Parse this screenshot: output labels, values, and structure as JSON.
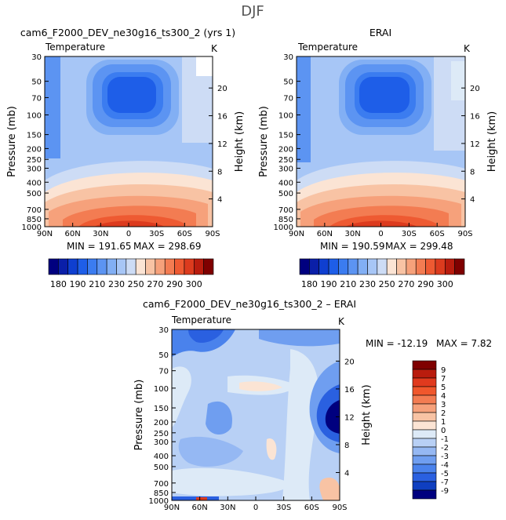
{
  "figure": {
    "title": "DJF"
  },
  "scales": {
    "left_axis_label": "Pressure (mb)",
    "right_axis_label": "Height (km)",
    "pressure_ticks": [
      "30",
      "50",
      "70",
      "100",
      "150",
      "200",
      "250",
      "300",
      "400",
      "500",
      "700",
      "850",
      "1000"
    ],
    "height_ticks": [
      "20",
      "16",
      "12",
      "8",
      "4"
    ],
    "lat_ticks": [
      "90N",
      "60N",
      "30N",
      "0",
      "30S",
      "60S",
      "90S"
    ]
  },
  "chart_data": [
    {
      "type": "heatmap",
      "title": "cam6_F2000_DEV_ne30g16_ts300_2 (yrs 1)",
      "variable": "Temperature",
      "units": "K",
      "min_label": "MIN = 191.65",
      "max_label": "MAX = 298.69",
      "min": 191.65,
      "max": 298.69
    },
    {
      "type": "heatmap",
      "title": "ERAI",
      "variable": "Temperature",
      "units": "K",
      "min_label": "MIN = 190.59",
      "max_label": "MAX = 299.48",
      "min": 190.59,
      "max": 299.48
    },
    {
      "type": "heatmap",
      "title": "cam6_F2000_DEV_ne30g16_ts300_2 – ERAI",
      "variable": "Temperature",
      "units": "K",
      "min_label": "MIN = -12.19",
      "max_label": "MAX =   7.82",
      "min": -12.19,
      "max": 7.82
    }
  ],
  "colorbars": {
    "absolute": {
      "labels": [
        "180",
        "190",
        "210",
        "230",
        "250",
        "270",
        "290",
        "300"
      ],
      "colors": [
        "#00007f",
        "#0a1fa8",
        "#0f3fd0",
        "#1e5ee8",
        "#3b7cf0",
        "#5c94f2",
        "#82aff4",
        "#a7c6f6",
        "#cddcf5",
        "#fbe4d4",
        "#f8c3a4",
        "#f6a17b",
        "#f37c52",
        "#ee5a32",
        "#dc3b1e",
        "#b91c0e",
        "#7f0000"
      ]
    },
    "difference": {
      "labels": [
        "9",
        "7",
        "5",
        "4",
        "3",
        "2",
        "1",
        "0",
        "-1",
        "-2",
        "-3",
        "-4",
        "-5",
        "-7",
        "-9"
      ],
      "colors": [
        "#7f0000",
        "#b91c0e",
        "#e03a1e",
        "#f0572c",
        "#f37c52",
        "#f6a17b",
        "#f8c3a4",
        "#fbe4d4",
        "#ddeaf7",
        "#b8d0f5",
        "#95b8f3",
        "#6f9ef0",
        "#4a82ec",
        "#2a60e0",
        "#0f3fc0",
        "#00007f"
      ]
    }
  }
}
